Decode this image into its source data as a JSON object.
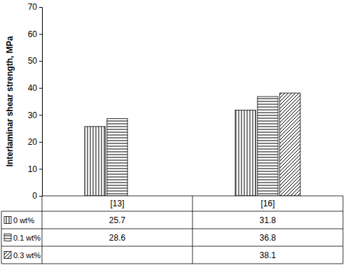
{
  "chart_data": {
    "type": "bar",
    "y_label": "Interlaminar shear strength, MPa",
    "categories": [
      "[13]",
      "[16]"
    ],
    "series": [
      {
        "name": "0 wt%",
        "color": "#000000",
        "values": [
          25.7,
          31.8
        ]
      },
      {
        "name": "0.1 wt%",
        "color": "#000000",
        "values": [
          28.6,
          36.8
        ]
      },
      {
        "name": "0.3 wt%",
        "color": "#000000",
        "values": [
          null,
          38.1
        ]
      }
    ],
    "ylim": [
      0,
      70
    ],
    "yticks": [
      0,
      10,
      20,
      30,
      40,
      50,
      60,
      70
    ],
    "grid": false,
    "data_labels": true
  }
}
